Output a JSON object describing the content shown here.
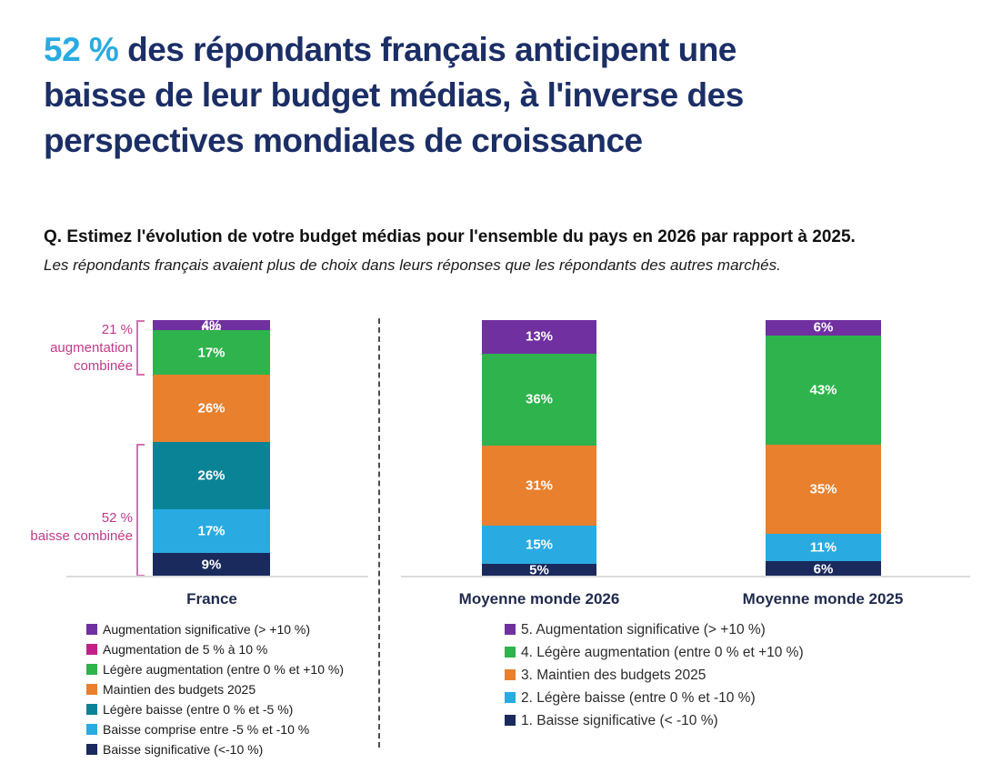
{
  "title": {
    "highlight": "52 %",
    "line1_rest": " des répondants français anticipent une",
    "line2": "baisse de leur budget médias, à l'inverse des",
    "line3": "perspectives mondiales de croissance"
  },
  "question": {
    "bold": "Q. Estimez l'évolution de votre budget médias pour l'ensemble du pays en 2026 par rapport à 2025.",
    "italic": "Les répondants français avaient plus de choix dans leurs réponses que les répondants des autres marchés."
  },
  "annotations": {
    "increase": {
      "lines": [
        "21 %",
        "augmentation",
        "combinée"
      ]
    },
    "decrease": {
      "lines": [
        "52 %",
        "baisse combinée"
      ]
    }
  },
  "colors": {
    "title_navy": "#1B2E66",
    "title_highlight": "#29ABE2",
    "annotation_pink": "#C23A8C",
    "bracket_pink": "#D66FAE",
    "purple": "#7030A0",
    "magenta": "#C4208A",
    "green": "#2EB34D",
    "orange": "#E8802E",
    "teal": "#0A8396",
    "light_blue": "#29ABE2",
    "navy": "#1A2A5C",
    "axis_gray": "#DBDBDB"
  },
  "chart_data": [
    {
      "type": "bar",
      "subtype": "stacked-column",
      "title": "France",
      "ylim": [
        0,
        100
      ],
      "grid": false,
      "segments": [
        {
          "label": "Augmentation significative (> +10 %)",
          "value": 4,
          "display": "4%",
          "color": "#7030A0"
        },
        {
          "label": "Augmentation de 5 % à 10 %",
          "value": 0,
          "display": "0%",
          "color": "#C4208A"
        },
        {
          "label": "Légère augmentation (entre 0 % et +10 %)",
          "value": 17,
          "display": "17%",
          "color": "#2EB34D"
        },
        {
          "label": "Maintien des budgets 2025",
          "value": 26,
          "display": "26%",
          "color": "#E8802E"
        },
        {
          "label": "Légère baisse (entre 0 % et -5 %)",
          "value": 26,
          "display": "26%",
          "color": "#0A8396"
        },
        {
          "label": "Baisse comprise entre -5 % et -10 %",
          "value": 17,
          "display": "17%",
          "color": "#29ABE2"
        },
        {
          "label": "Baisse significative (<-10 %)",
          "value": 9,
          "display": "9%",
          "color": "#1A2A5C"
        }
      ]
    },
    {
      "type": "bar",
      "subtype": "stacked-column",
      "title": "Moyenne monde 2026",
      "ylim": [
        0,
        100
      ],
      "grid": false,
      "segments": [
        {
          "label": "5. Augmentation significative (> +10 %)",
          "value": 13,
          "display": "13%",
          "color": "#7030A0"
        },
        {
          "label": "4. Légère augmentation (entre 0 % et +10 %)",
          "value": 36,
          "display": "36%",
          "color": "#2EB34D"
        },
        {
          "label": "3. Maintien des budgets 2025",
          "value": 31,
          "display": "31%",
          "color": "#E8802E"
        },
        {
          "label": "2. Légère baisse (entre 0 % et -10 %)",
          "value": 15,
          "display": "15%",
          "color": "#29ABE2"
        },
        {
          "label": "1. Baisse significative (< -10 %)",
          "value": 5,
          "display": "5%",
          "color": "#1A2A5C"
        }
      ]
    },
    {
      "type": "bar",
      "subtype": "stacked-column",
      "title": "Moyenne monde 2025",
      "ylim": [
        0,
        100
      ],
      "grid": false,
      "segments": [
        {
          "label": "5. Augmentation significative (> +10 %)",
          "value": 6,
          "display": "6%",
          "color": "#7030A0"
        },
        {
          "label": "4. Légère augmentation (entre 0 % et +10 %)",
          "value": 43,
          "display": "43%",
          "color": "#2EB34D"
        },
        {
          "label": "3. Maintien des budgets 2025",
          "value": 35,
          "display": "35%",
          "color": "#E8802E"
        },
        {
          "label": "2. Légère baisse (entre 0 % et -10 %)",
          "value": 11,
          "display": "11%",
          "color": "#29ABE2"
        },
        {
          "label": "1. Baisse significative (< -10 %)",
          "value": 6,
          "display": "6%",
          "color": "#1A2A5C"
        }
      ]
    }
  ],
  "legend_left": {
    "items": [
      {
        "color": "#7030A0",
        "label": "Augmentation significative (> +10 %)"
      },
      {
        "color": "#C4208A",
        "label": "Augmentation de 5 % à 10 %"
      },
      {
        "color": "#2EB34D",
        "label": "Légère augmentation (entre 0 % et +10 %)"
      },
      {
        "color": "#E8802E",
        "label": "Maintien des budgets 2025"
      },
      {
        "color": "#0A8396",
        "label": "Légère baisse (entre 0 % et -5 %)"
      },
      {
        "color": "#29ABE2",
        "label": "Baisse comprise entre -5 % et -10 %"
      },
      {
        "color": "#1A2A5C",
        "label": "Baisse significative (<-10 %)"
      }
    ]
  },
  "legend_right": {
    "items": [
      {
        "color": "#7030A0",
        "label": "5. Augmentation significative (> +10 %)"
      },
      {
        "color": "#2EB34D",
        "label": "4. Légère augmentation (entre 0 % et +10 %)"
      },
      {
        "color": "#E8802E",
        "label": "3. Maintien des budgets 2025"
      },
      {
        "color": "#29ABE2",
        "label": "2. Légère baisse (entre 0 % et -10 %)"
      },
      {
        "color": "#1A2A5C",
        "label": "1. Baisse significative (< -10 %)"
      }
    ]
  }
}
